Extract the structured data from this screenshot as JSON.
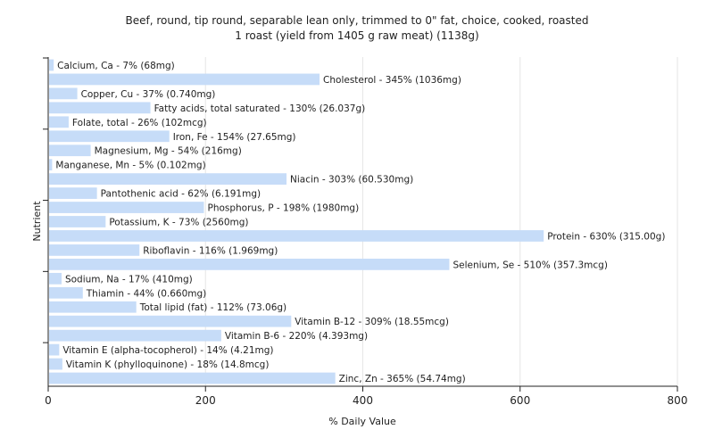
{
  "chart_data": {
    "type": "bar",
    "orientation": "horizontal",
    "title_line1": "Beef, round, tip round, separable lean only, trimmed to 0\" fat, choice, cooked, roasted",
    "title_line2": "1 roast (yield from 1405 g raw meat) (1138g)",
    "xlabel": "% Daily Value",
    "ylabel": "Nutrient",
    "xlim": [
      0,
      800
    ],
    "xticks": [
      0,
      200,
      400,
      600,
      800
    ],
    "grid": true,
    "colors": {
      "bar": "#c6dcf8",
      "grid": "#e6e6e6",
      "axis": "#222222"
    },
    "bars": [
      {
        "name": "Calcium, Ca",
        "value": 7,
        "label": "Calcium, Ca - 7% (68mg)"
      },
      {
        "name": "Cholesterol",
        "value": 345,
        "label": "Cholesterol - 345% (1036mg)"
      },
      {
        "name": "Copper, Cu",
        "value": 37,
        "label": "Copper, Cu - 37% (0.740mg)"
      },
      {
        "name": "Fatty acids, total saturated",
        "value": 130,
        "label": "Fatty acids, total saturated - 130% (26.037g)"
      },
      {
        "name": "Folate, total",
        "value": 26,
        "label": "Folate, total - 26% (102mcg)"
      },
      {
        "name": "Iron, Fe",
        "value": 154,
        "label": "Iron, Fe - 154% (27.65mg)"
      },
      {
        "name": "Magnesium, Mg",
        "value": 54,
        "label": "Magnesium, Mg - 54% (216mg)"
      },
      {
        "name": "Manganese, Mn",
        "value": 5,
        "label": "Manganese, Mn - 5% (0.102mg)"
      },
      {
        "name": "Niacin",
        "value": 303,
        "label": "Niacin - 303% (60.530mg)"
      },
      {
        "name": "Pantothenic acid",
        "value": 62,
        "label": "Pantothenic acid - 62% (6.191mg)"
      },
      {
        "name": "Phosphorus, P",
        "value": 198,
        "label": "Phosphorus, P - 198% (1980mg)"
      },
      {
        "name": "Potassium, K",
        "value": 73,
        "label": "Potassium, K - 73% (2560mg)"
      },
      {
        "name": "Protein",
        "value": 630,
        "label": "Protein - 630% (315.00g)"
      },
      {
        "name": "Riboflavin",
        "value": 116,
        "label": "Riboflavin - 116% (1.969mg)"
      },
      {
        "name": "Selenium, Se",
        "value": 510,
        "label": "Selenium, Se - 510% (357.3mcg)"
      },
      {
        "name": "Sodium, Na",
        "value": 17,
        "label": "Sodium, Na - 17% (410mg)"
      },
      {
        "name": "Thiamin",
        "value": 44,
        "label": "Thiamin - 44% (0.660mg)"
      },
      {
        "name": "Total lipid (fat)",
        "value": 112,
        "label": "Total lipid (fat) - 112% (73.06g)"
      },
      {
        "name": "Vitamin B-12",
        "value": 309,
        "label": "Vitamin B-12 - 309% (18.55mcg)"
      },
      {
        "name": "Vitamin B-6",
        "value": 220,
        "label": "Vitamin B-6 - 220% (4.393mg)"
      },
      {
        "name": "Vitamin E (alpha-tocopherol)",
        "value": 14,
        "label": "Vitamin E (alpha-tocopherol) - 14% (4.21mg)"
      },
      {
        "name": "Vitamin K (phylloquinone)",
        "value": 18,
        "label": "Vitamin K (phylloquinone) - 18% (14.8mcg)"
      },
      {
        "name": "Zinc, Zn",
        "value": 365,
        "label": "Zinc, Zn - 365% (54.74mg)"
      }
    ]
  }
}
